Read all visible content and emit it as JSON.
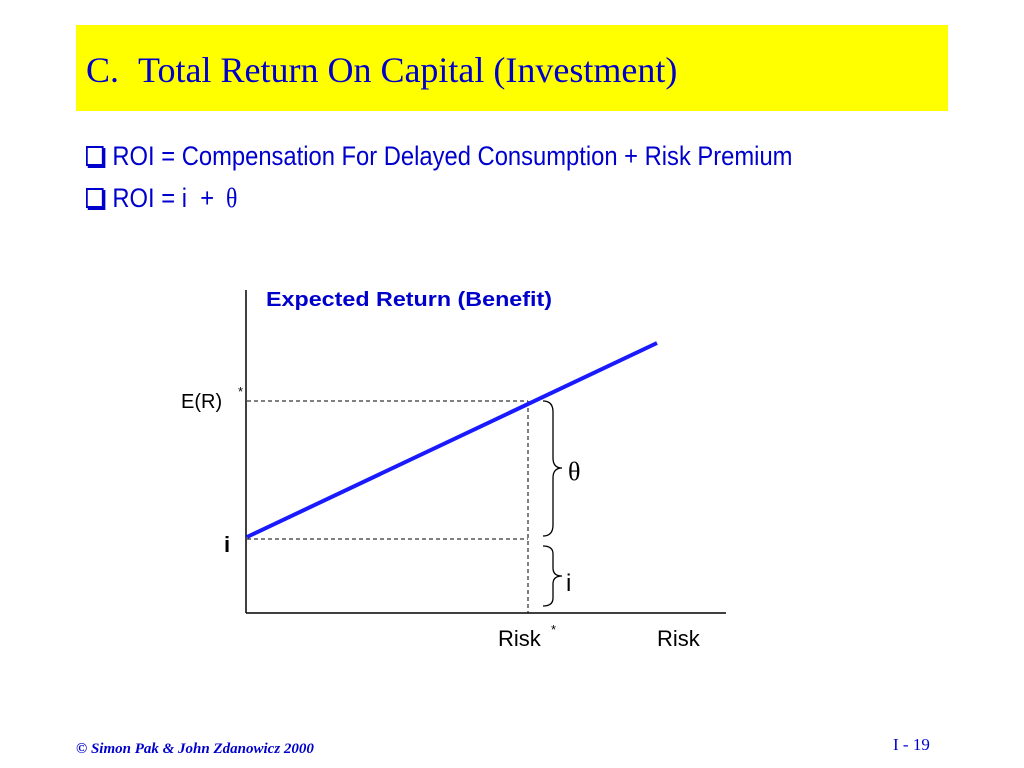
{
  "slide": {
    "title_letter": "C.",
    "title": "Total Return On Capital (Investment)",
    "bullets": [
      {
        "text": "ROI = Compensation For Delayed Consumption + Risk Premium"
      },
      {
        "text": "ROI = i  + ",
        "symbol": "θ"
      }
    ],
    "footer": "© Simon Pak & John Zdanowicz 2000",
    "page_number": "I - 19"
  },
  "diagram": {
    "y_axis_title": "Expected Return (Benefit)",
    "er_label": "E(R)",
    "er_superscript": "*",
    "i_label": "i",
    "x_label": "Risk",
    "risk_star_label": "Risk",
    "risk_star_superscript": "*",
    "theta_label": "θ",
    "i_bracket_label": "i"
  },
  "colors": {
    "title_background": "#ffff00",
    "accent": "#0000cc",
    "line": "#1a1aff"
  }
}
